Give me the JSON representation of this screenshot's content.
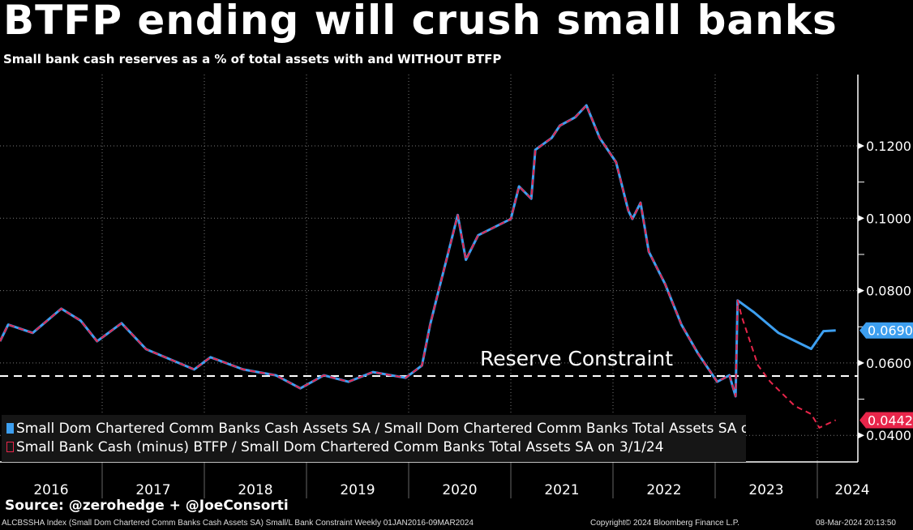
{
  "title": "BTFP ending will crush small banks",
  "subtitle": "Small bank cash reserves as a % of total assets with and WITHOUT BTFP",
  "source": "Source: @zerohedge + @JoeConsorti",
  "footer": {
    "left": "ALCBSSHA Index (Small Dom Chartered Comm Banks Cash Assets SA) Small/L Bank Constraint  Weekly 01JAN2016-09MAR2024",
    "center": "Copyright© 2024 Bloomberg Finance L.P.",
    "right": "08-Mar-2024 20:13:50"
  },
  "chart_data": {
    "type": "line",
    "title": "BTFP ending will crush small banks",
    "ylim": [
      0.036,
      0.134
    ],
    "xlim": [
      2016.0,
      2024.4
    ],
    "yticks": [
      "0.0400",
      "0.0600",
      "0.0800",
      "0.1000",
      "0.1200"
    ],
    "ytick_values": [
      0.04,
      0.06,
      0.08,
      0.1,
      0.12
    ],
    "xtick_labels": [
      "2016",
      "2017",
      "2018",
      "2019",
      "2020",
      "2021",
      "2022",
      "2023",
      "2024"
    ],
    "annotation": {
      "text": "Reserve Constraint",
      "value": 0.0564
    },
    "series": [
      {
        "name": "Small Dom Chartered Comm Banks Cash Assets SA / Small Dom Chartered Comm Banks Total Assets SA on",
        "color": "#3d9ff0",
        "last": "0.0690",
        "x": [
          2016.0,
          2016.08,
          2016.32,
          2016.6,
          2016.79,
          2016.95,
          2017.19,
          2017.43,
          2017.9,
          2018.06,
          2018.38,
          2018.7,
          2018.94,
          2019.17,
          2019.41,
          2019.65,
          2019.97,
          2020.13,
          2020.21,
          2020.29,
          2020.37,
          2020.48,
          2020.56,
          2020.68,
          2021.0,
          2021.08,
          2021.2,
          2021.24,
          2021.4,
          2021.48,
          2021.63,
          2021.74,
          2021.87,
          2022.03,
          2022.15,
          2022.19,
          2022.27,
          2022.35,
          2022.51,
          2022.67,
          2022.83,
          2023.02,
          2023.14,
          2023.2,
          2023.22,
          2023.38,
          2023.62,
          2023.86,
          2023.94,
          2024.06,
          2024.18
        ],
        "y": [
          0.066,
          0.0706,
          0.0683,
          0.075,
          0.0717,
          0.066,
          0.071,
          0.0638,
          0.0582,
          0.0616,
          0.0582,
          0.0566,
          0.053,
          0.0566,
          0.0548,
          0.0575,
          0.0559,
          0.0593,
          0.0706,
          0.0796,
          0.0885,
          0.1009,
          0.0885,
          0.0953,
          0.0998,
          0.1088,
          0.1054,
          0.1189,
          0.1222,
          0.1256,
          0.1279,
          0.1312,
          0.1222,
          0.1155,
          0.1021,
          0.0998,
          0.1043,
          0.0908,
          0.0818,
          0.0706,
          0.0627,
          0.0548,
          0.0566,
          0.0508,
          0.0773,
          0.074,
          0.0683,
          0.065,
          0.0639,
          0.0688,
          0.069
        ]
      },
      {
        "name": "Small Bank Cash (minus) BTFP / Small Dom Chartered Comm Banks Total Assets SA on 3/1/24",
        "color": "#e8254a",
        "last": "0.0442",
        "dashed": true,
        "x": [
          2016.0,
          2016.08,
          2016.32,
          2016.6,
          2016.79,
          2016.95,
          2017.19,
          2017.43,
          2017.9,
          2018.06,
          2018.38,
          2018.7,
          2018.94,
          2019.17,
          2019.41,
          2019.65,
          2019.97,
          2020.13,
          2020.21,
          2020.29,
          2020.37,
          2020.48,
          2020.56,
          2020.68,
          2021.0,
          2021.08,
          2021.2,
          2021.24,
          2021.4,
          2021.48,
          2021.63,
          2021.74,
          2021.87,
          2022.03,
          2022.15,
          2022.19,
          2022.27,
          2022.35,
          2022.51,
          2022.67,
          2022.83,
          2023.02,
          2023.14,
          2023.2,
          2023.22,
          2023.26,
          2023.42,
          2023.54,
          2023.78,
          2023.94,
          2024.02,
          2024.18
        ],
        "y": [
          0.066,
          0.0706,
          0.0683,
          0.075,
          0.0717,
          0.066,
          0.071,
          0.0638,
          0.0582,
          0.0616,
          0.0582,
          0.0566,
          0.053,
          0.0566,
          0.0548,
          0.0575,
          0.0559,
          0.0593,
          0.0706,
          0.0796,
          0.0885,
          0.1009,
          0.0885,
          0.0953,
          0.0998,
          0.1088,
          0.1054,
          0.1189,
          0.1222,
          0.1256,
          0.1279,
          0.1312,
          0.1222,
          0.1155,
          0.1021,
          0.0998,
          0.1043,
          0.0908,
          0.0818,
          0.0706,
          0.0627,
          0.0548,
          0.0566,
          0.0508,
          0.0773,
          0.0728,
          0.0593,
          0.0548,
          0.0481,
          0.0459,
          0.0421,
          0.0442
        ]
      }
    ]
  }
}
